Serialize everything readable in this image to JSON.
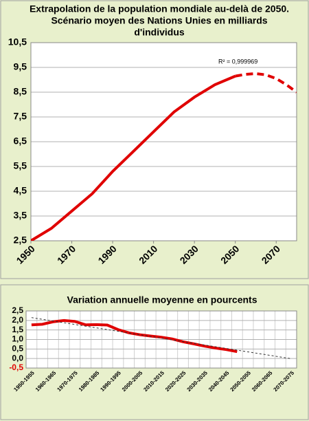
{
  "chart_data": [
    {
      "type": "line",
      "title": [
        "Extrapolation de la population mondiale au-delà de 2050.",
        "Scénario moyen des Nations Unies en milliards",
        "d'individus"
      ],
      "annotation": "R² = 0,999969",
      "series": [
        {
          "color": "#e00000",
          "dash": false,
          "x": [
            1950,
            1960,
            1970,
            1980,
            1990,
            2000,
            2010,
            2020,
            2030,
            2040,
            2050
          ],
          "values": [
            2.5,
            3.0,
            3.7,
            4.4,
            5.3,
            6.1,
            6.9,
            7.7,
            8.3,
            8.8,
            9.15
          ]
        },
        {
          "color": "#e00000",
          "dash": true,
          "x": [
            2050,
            2055,
            2060,
            2065,
            2070,
            2075,
            2080
          ],
          "values": [
            9.15,
            9.22,
            9.25,
            9.2,
            9.05,
            8.8,
            8.5
          ]
        }
      ],
      "xlim": [
        1950,
        2080
      ],
      "xticks": [
        1950,
        1970,
        1990,
        2010,
        2030,
        2050,
        2070
      ],
      "ylim": [
        2.5,
        10.5
      ],
      "yticks": [
        {
          "value": 2.5,
          "label": "2,5"
        },
        {
          "value": 3.5,
          "label": "3,5"
        },
        {
          "value": 4.5,
          "label": "4,5"
        },
        {
          "value": 5.5,
          "label": "5,5"
        },
        {
          "value": 6.5,
          "label": "6,5"
        },
        {
          "value": 7.5,
          "label": "7,5"
        },
        {
          "value": 8.5,
          "label": "8,5"
        },
        {
          "value": 9.5,
          "label": "9,5"
        },
        {
          "value": 10.5,
          "label": "10,5"
        }
      ],
      "grid": true
    },
    {
      "type": "line",
      "title": "Variation annuelle moyenne en pourcents",
      "categories": [
        "1950-1955",
        null,
        "1960-1965",
        null,
        "1970-1975",
        null,
        "1980-1985",
        null,
        "1990-1995",
        null,
        "2000-2005",
        null,
        "2010-2015",
        null,
        "2020-2025",
        null,
        "2030-2035",
        null,
        "2040-2045",
        null,
        "2050-2055",
        null,
        "2060-2065",
        null,
        "2070-2075"
      ],
      "series": [
        {
          "color": "#e00000",
          "dash": false,
          "values": [
            1.77,
            1.8,
            1.93,
            2.0,
            1.95,
            1.77,
            1.78,
            1.76,
            1.52,
            1.35,
            1.25,
            1.18,
            1.12,
            1.03,
            0.88,
            0.77,
            0.65,
            0.55,
            0.47,
            0.36,
            null,
            null,
            null,
            null,
            null
          ]
        },
        {
          "color": "#333333",
          "dash": true,
          "thin": true,
          "values": [
            2.15,
            2.06,
            1.97,
            1.88,
            1.79,
            1.7,
            1.61,
            1.52,
            1.43,
            1.34,
            1.25,
            1.16,
            1.07,
            0.98,
            0.89,
            0.8,
            0.71,
            0.62,
            0.53,
            0.44,
            0.35,
            0.26,
            0.17,
            0.08,
            -0.01
          ]
        }
      ],
      "ylim": [
        -0.5,
        2.5
      ],
      "yticks": [
        {
          "value": -0.5,
          "label": "-0,5"
        },
        {
          "value": 0,
          "label": "0,0"
        },
        {
          "value": 0.5,
          "label": "0,5"
        },
        {
          "value": 1,
          "label": "1,0"
        },
        {
          "value": 1.5,
          "label": "1,5"
        },
        {
          "value": 2,
          "label": "2,0"
        },
        {
          "value": 2.5,
          "label": "2,5"
        }
      ],
      "negative_tick_color": "#e00000",
      "grid": true
    }
  ]
}
